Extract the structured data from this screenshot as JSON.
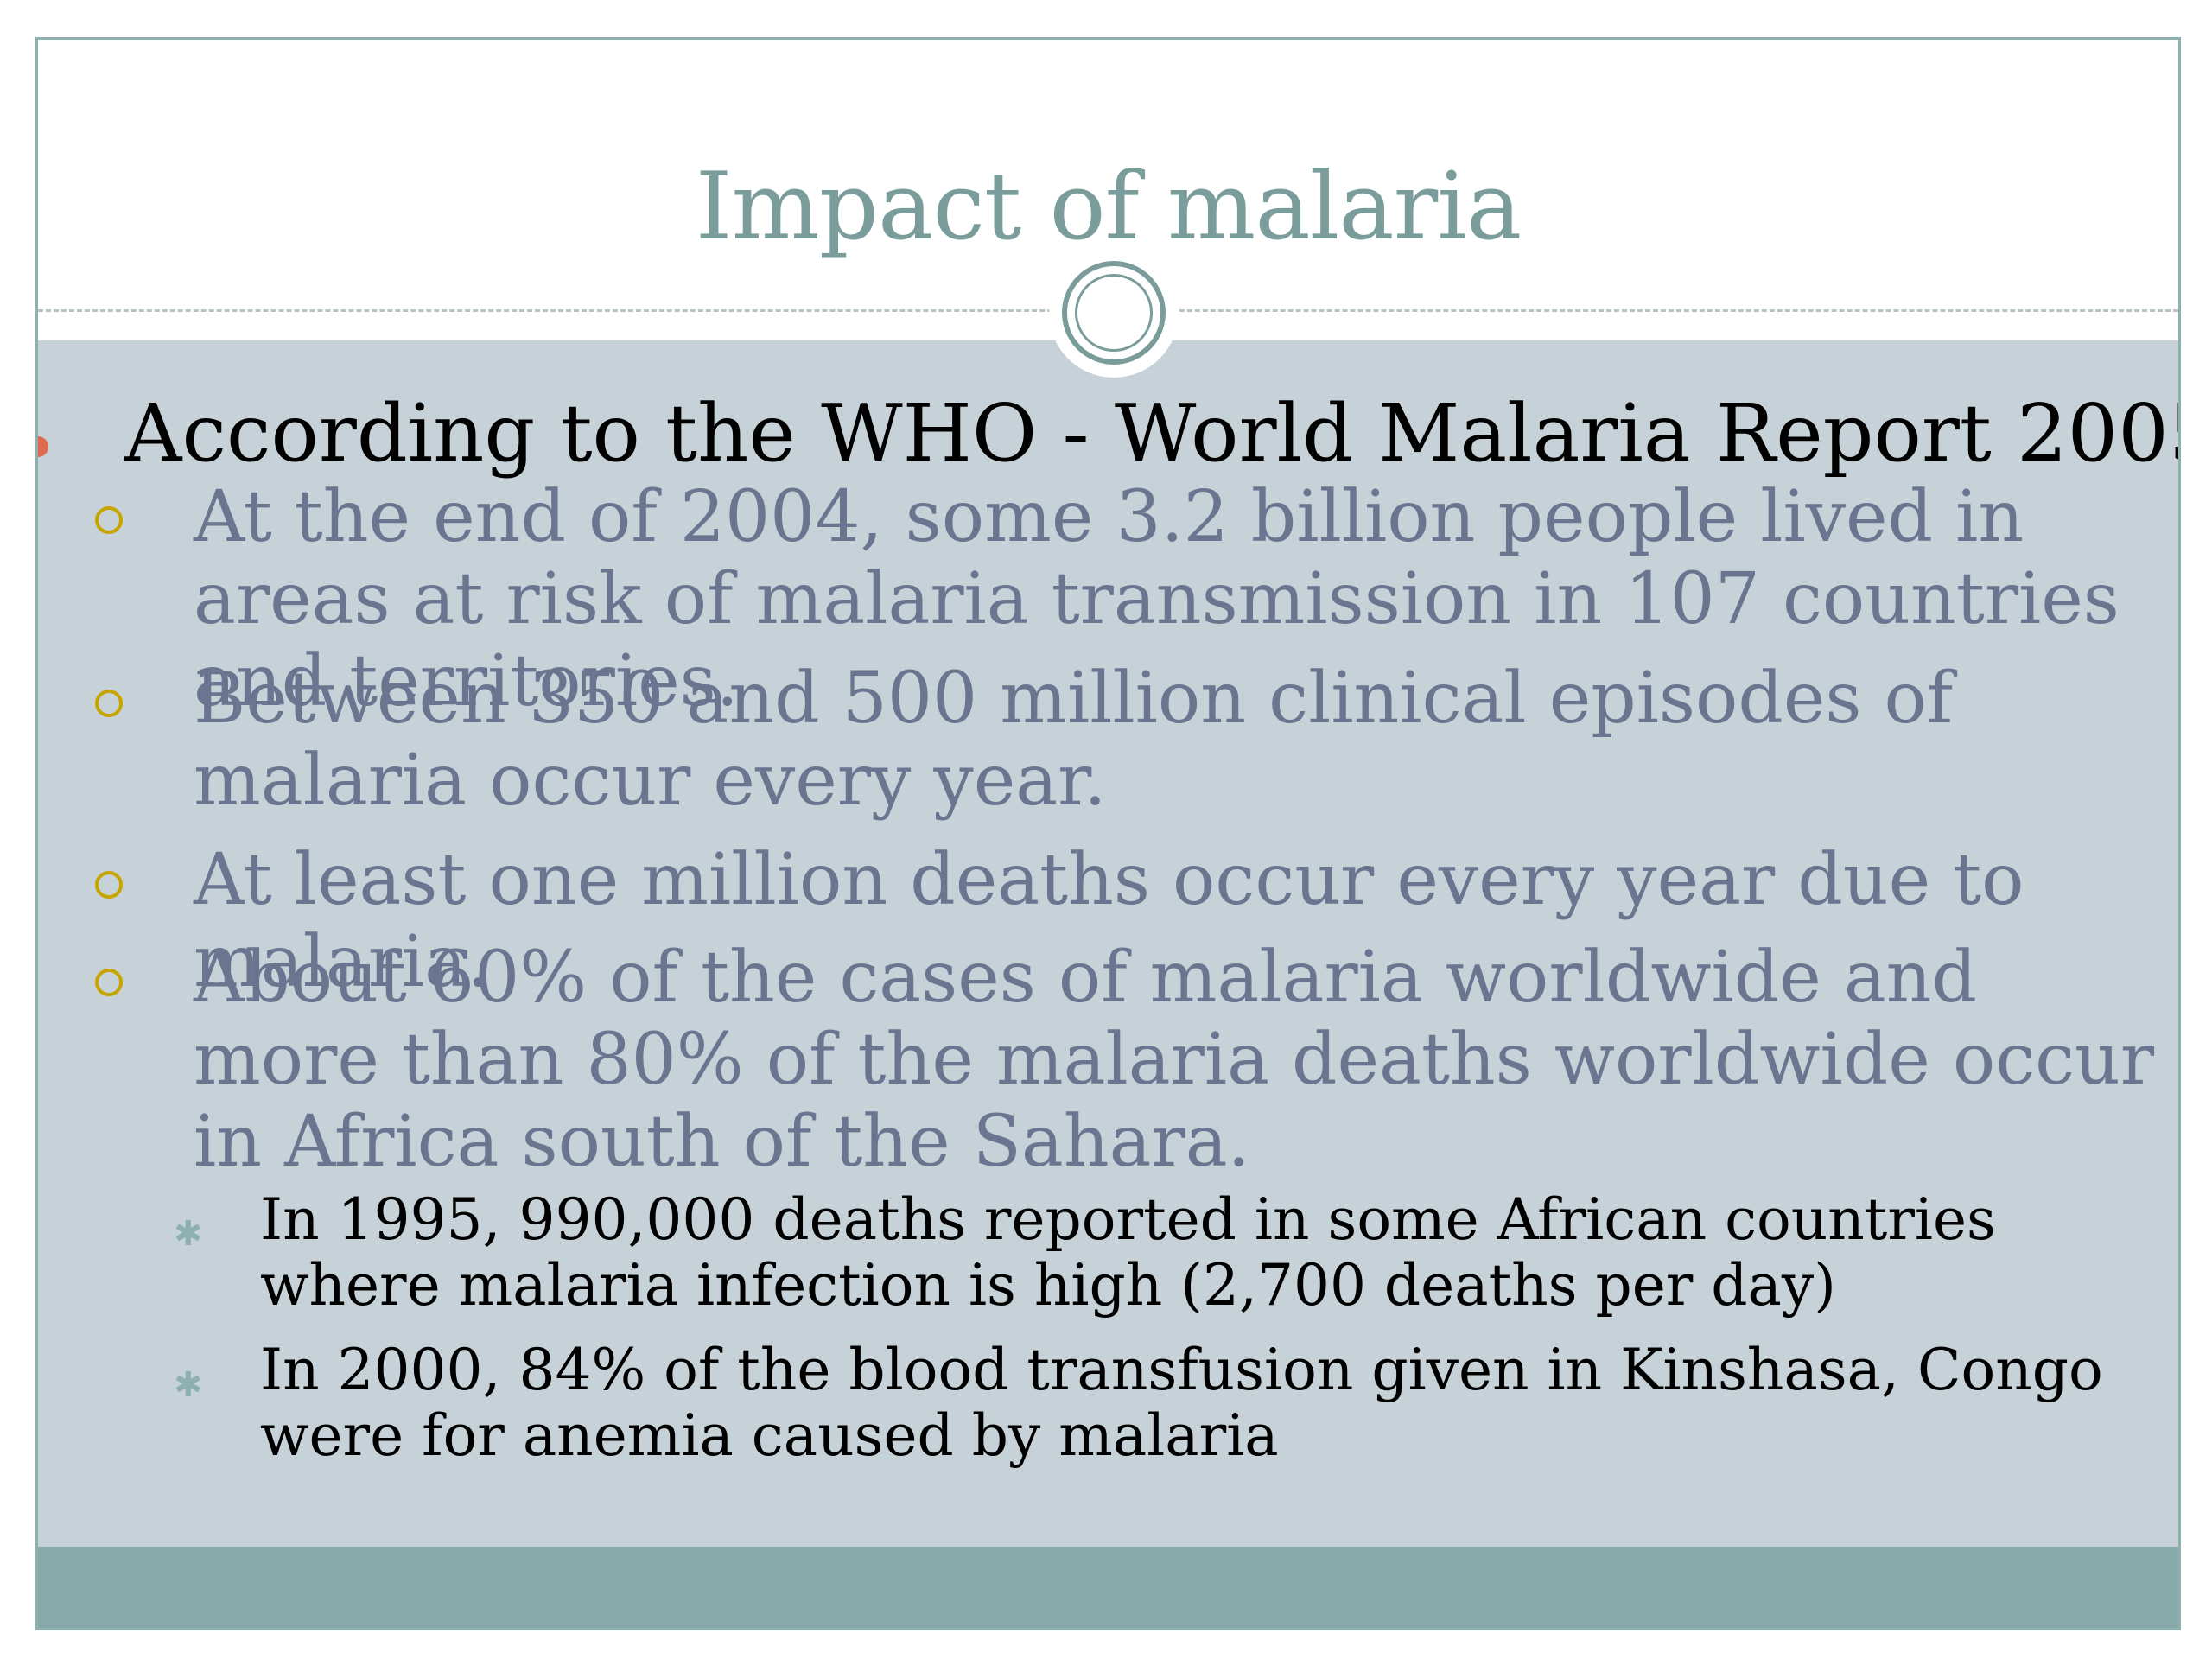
{
  "slide": {
    "title": "Impact of malaria",
    "main_bullet": "According to the WHO - World Malaria Report 2005:",
    "sub_bullets": [
      "At the end of 2004, some 3.2 billion people lived in areas at risk of malaria transmission in 107 countries and territories.",
      "Between 350 and 500 million clinical episodes of malaria occur every year.",
      "At least one million deaths occur every year due to malaria.",
      "About 60% of the cases of malaria worldwide and more than 80% of the malaria deaths worldwide occur in Africa south of the Sahara."
    ],
    "sub_sub_bullets": [
      "In 1995, 990,000 deaths reported in some African countries where malaria infection is high (2,700 deaths per day)",
      "In 2000, 84% of the blood transfusion given in Kinshasa, Congo were for anemia caused by malaria"
    ]
  },
  "colors": {
    "title": "#7a9d9b",
    "content_background": "#c6d2d8",
    "footer_bar": "#87a9a9",
    "main_bullet_dot": "#e06a4f",
    "sub_bullet_ring": "#c8a400",
    "sub_bullet_text": "#6a7590",
    "sub_sub_bullet_mark": "#8fb0b0"
  },
  "icons": {
    "main_bullet": "filled-circle-bullet",
    "sub_bullet": "hollow-circle-bullet",
    "sub_sub_bullet": "small-cross-bullet",
    "header_ornament": "double-ring-ornament"
  }
}
